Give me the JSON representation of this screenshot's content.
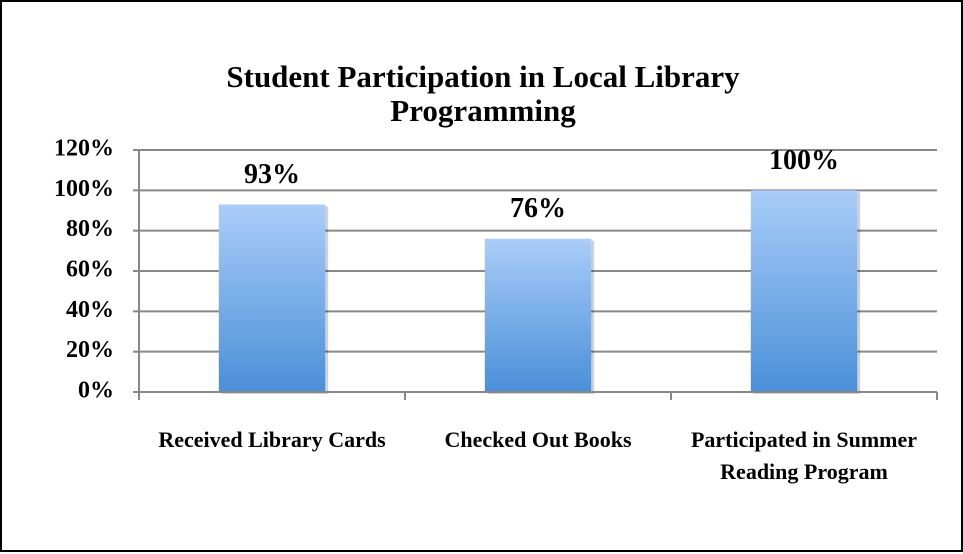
{
  "chart_data": {
    "type": "bar",
    "title": "Student Participation in Local Library Programming",
    "categories": [
      "Received Library Cards",
      "Checked Out Books",
      "Participated in Summer Reading Program"
    ],
    "values": [
      93,
      76,
      100
    ],
    "value_labels": [
      "93%",
      "76%",
      "100%"
    ],
    "color": "#4a8fd8",
    "ylim": [
      0,
      120
    ],
    "yticks": [
      {
        "value": 0,
        "label": "0%"
      },
      {
        "value": 20,
        "label": "20%"
      },
      {
        "value": 40,
        "label": "40%"
      },
      {
        "value": 60,
        "label": "60%"
      },
      {
        "value": 80,
        "label": "80%"
      },
      {
        "value": 100,
        "label": "100%"
      },
      {
        "value": 120,
        "label": "120%"
      }
    ],
    "grid": true
  }
}
